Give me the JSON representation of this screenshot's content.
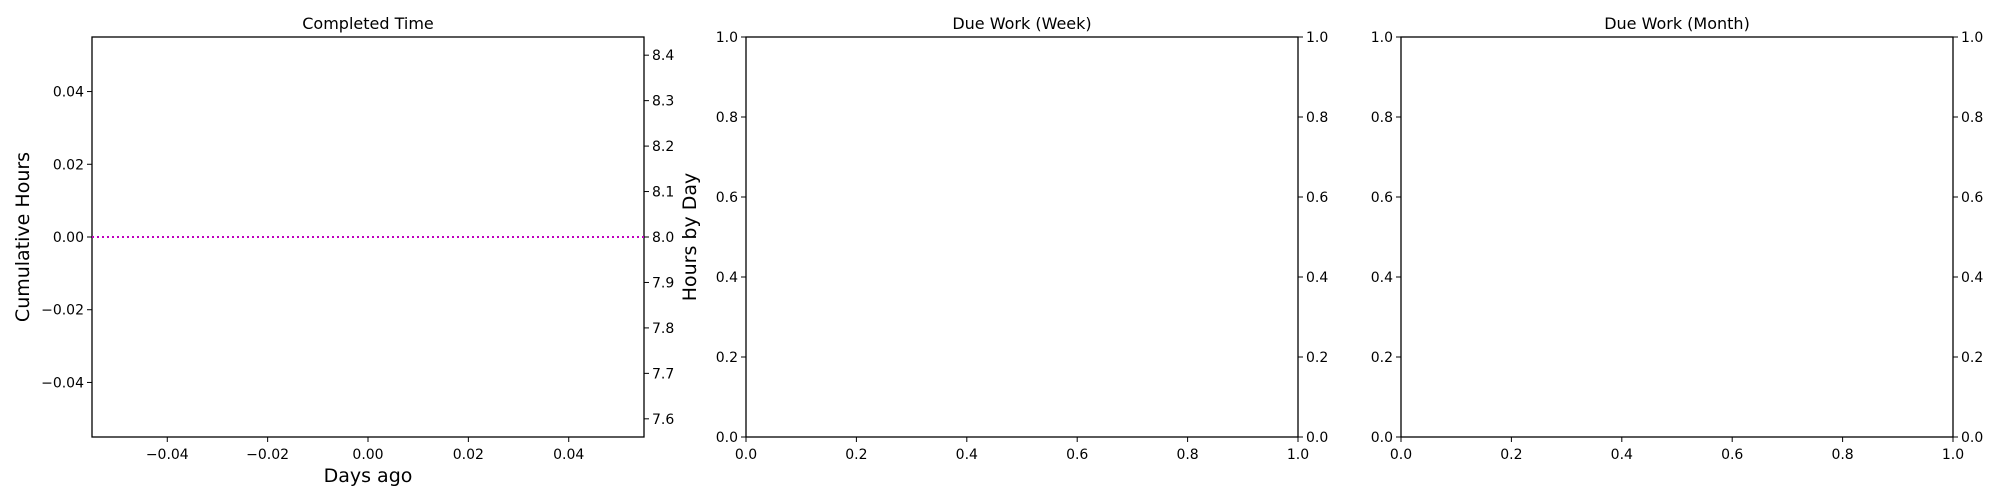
{
  "chart_data": [
    {
      "type": "line",
      "title": "Completed Time",
      "xlabel": "Days ago",
      "ylabel": "Cumulative Hours",
      "y2label": "Hours by Day",
      "xlim": [
        -0.055,
        0.055
      ],
      "ylim": [
        -0.055,
        0.055
      ],
      "y2lim": [
        7.56,
        8.44
      ],
      "xticks": [
        "−0.04",
        "−0.02",
        "0.00",
        "0.02",
        "0.04"
      ],
      "xtick_values": [
        -0.04,
        -0.02,
        0.0,
        0.02,
        0.04
      ],
      "yticks": [
        "−0.04",
        "−0.02",
        "0.00",
        "0.02",
        "0.04"
      ],
      "ytick_values": [
        -0.04,
        -0.02,
        0.0,
        0.02,
        0.04
      ],
      "y2ticks": [
        "7.6",
        "7.7",
        "7.8",
        "7.9",
        "8.0",
        "8.1",
        "8.2",
        "8.3",
        "8.4"
      ],
      "y2tick_values": [
        7.6,
        7.7,
        7.8,
        7.9,
        8.0,
        8.1,
        8.2,
        8.3,
        8.4
      ],
      "hlines": [
        {
          "y2": 8.0,
          "color": "#bf00bf",
          "style": "dotted"
        }
      ],
      "grid": false,
      "series": []
    },
    {
      "type": "line",
      "title": "Due Work (Week)",
      "xlabel": "",
      "ylabel": "",
      "xlim": [
        0,
        1
      ],
      "ylim": [
        0,
        1
      ],
      "y2lim": [
        0,
        1
      ],
      "xticks": [
        "0.0",
        "0.2",
        "0.4",
        "0.6",
        "0.8",
        "1.0"
      ],
      "xtick_values": [
        0,
        0.2,
        0.4,
        0.6,
        0.8,
        1.0
      ],
      "yticks": [
        "0.0",
        "0.2",
        "0.4",
        "0.6",
        "0.8",
        "1.0"
      ],
      "ytick_values": [
        0,
        0.2,
        0.4,
        0.6,
        0.8,
        1.0
      ],
      "y2ticks": [
        "0.0",
        "0.2",
        "0.4",
        "0.6",
        "0.8",
        "1.0"
      ],
      "y2tick_values": [
        0,
        0.2,
        0.4,
        0.6,
        0.8,
        1.0
      ],
      "hlines": [],
      "grid": false,
      "series": []
    },
    {
      "type": "line",
      "title": "Due Work (Month)",
      "xlabel": "",
      "ylabel": "",
      "xlim": [
        0,
        1
      ],
      "ylim": [
        0,
        1
      ],
      "y2lim": [
        0,
        1
      ],
      "xticks": [
        "0.0",
        "0.2",
        "0.4",
        "0.6",
        "0.8",
        "1.0"
      ],
      "xtick_values": [
        0,
        0.2,
        0.4,
        0.6,
        0.8,
        1.0
      ],
      "yticks": [
        "0.0",
        "0.2",
        "0.4",
        "0.6",
        "0.8",
        "1.0"
      ],
      "ytick_values": [
        0,
        0.2,
        0.4,
        0.6,
        0.8,
        1.0
      ],
      "y2ticks": [
        "0.0",
        "0.2",
        "0.4",
        "0.6",
        "0.8",
        "1.0"
      ],
      "y2tick_values": [
        0,
        0.2,
        0.4,
        0.6,
        0.8,
        1.0
      ],
      "hlines": [],
      "grid": false,
      "series": []
    }
  ]
}
